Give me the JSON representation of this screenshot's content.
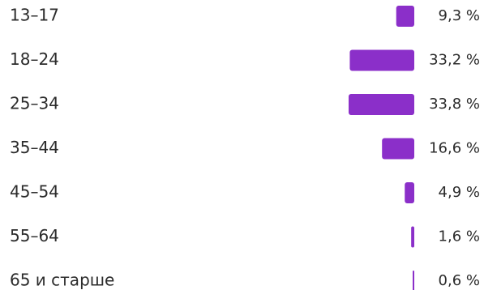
{
  "chart_data": {
    "type": "bar",
    "orientation": "horizontal",
    "categories": [
      "13–17",
      "18–24",
      "25–34",
      "35–44",
      "45–54",
      "55–64",
      "65 и старше"
    ],
    "values": [
      9.3,
      33.2,
      33.8,
      16.6,
      4.9,
      1.6,
      0.6
    ],
    "value_labels": [
      "9,3 %",
      "33,2 %",
      "33,8 %",
      "16,6 %",
      "4,9 %",
      "1,6 %",
      "0,6 %"
    ],
    "bar_color": "#8b2fc9",
    "grid": false,
    "xlim": [
      0,
      33.8
    ]
  }
}
